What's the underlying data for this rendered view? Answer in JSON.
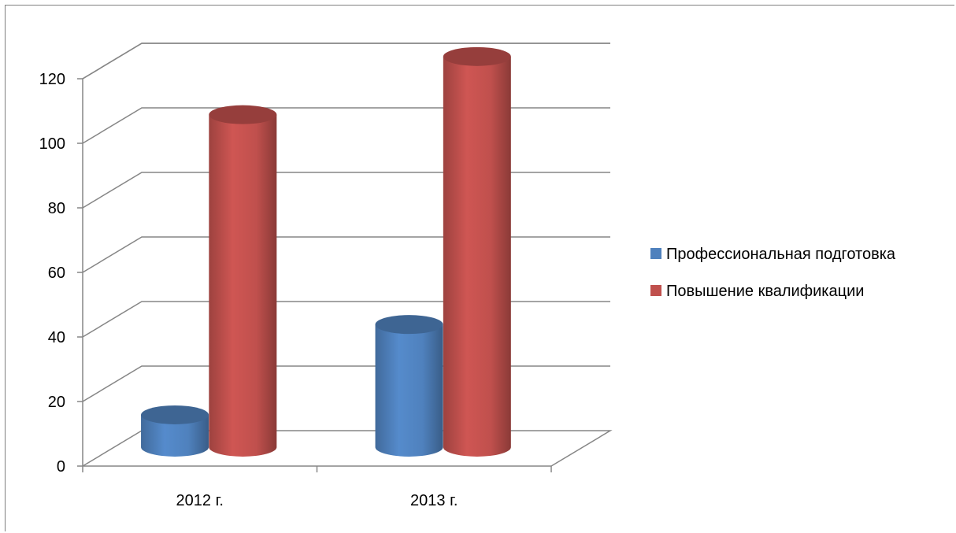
{
  "chart_data": {
    "type": "bar",
    "style": "3d-cylinder",
    "categories": [
      "2012 г.",
      "2013 г."
    ],
    "series": [
      {
        "name": "Профессиональная подготовка",
        "values": [
          10,
          38
        ],
        "color": "#4f81bd"
      },
      {
        "name": "Повышение квалификации",
        "values": [
          103,
          121
        ],
        "color": "#c0504d"
      }
    ],
    "ylim": [
      0,
      120
    ],
    "yticks": [
      0,
      20,
      40,
      60,
      80,
      100,
      120
    ],
    "grid": true,
    "legend_position": "right"
  }
}
